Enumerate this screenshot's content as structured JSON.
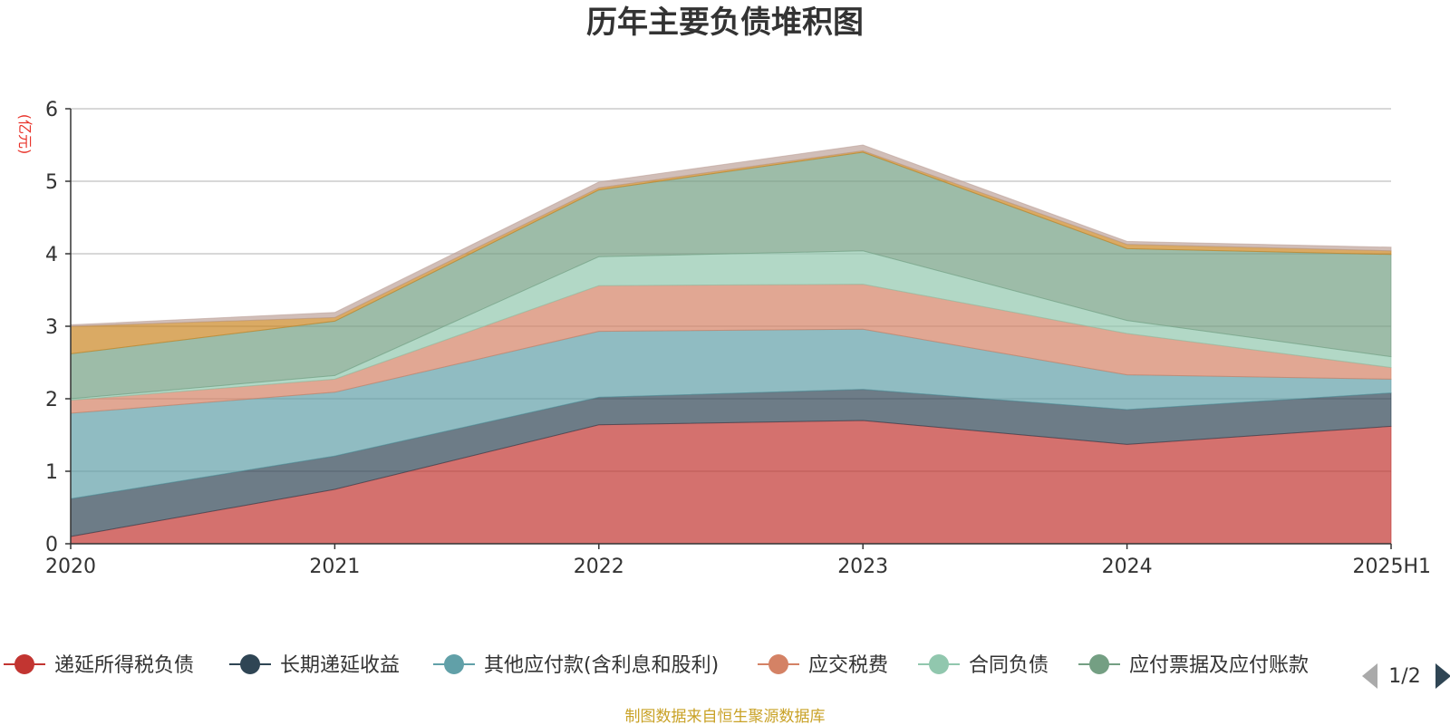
{
  "chart_data": {
    "type": "area",
    "stacked": true,
    "title": "历年主要负债堆积图",
    "unit": "(亿元)",
    "source": "制图数据来自恒生聚源数据库",
    "categories": [
      "2020",
      "2021",
      "2022",
      "2023",
      "2024",
      "2025H1"
    ],
    "ylim": [
      0,
      6
    ],
    "yticks": [
      "0",
      "1",
      "2",
      "3",
      "4",
      "5",
      "6"
    ],
    "grid": true,
    "legend_position": "bottom",
    "legend_page": "1/2",
    "series": [
      {
        "name": "递延所得税负债",
        "color": "#c23531",
        "values": [
          0.1,
          0.75,
          1.64,
          1.7,
          1.37,
          1.62
        ],
        "legend": true
      },
      {
        "name": "长期递延收益",
        "color": "#2f4554",
        "values": [
          0.52,
          0.46,
          0.38,
          0.43,
          0.48,
          0.46
        ],
        "legend": true
      },
      {
        "name": "其他应付款(含利息和股利)",
        "color": "#61a0a8",
        "values": [
          1.18,
          0.88,
          0.91,
          0.83,
          0.48,
          0.19
        ],
        "legend": true
      },
      {
        "name": "应交税费",
        "color": "#d48265",
        "values": [
          0.18,
          0.18,
          0.63,
          0.62,
          0.57,
          0.16
        ],
        "legend": true
      },
      {
        "name": "合同负债",
        "color": "#91c7ae",
        "values": [
          0.02,
          0.05,
          0.4,
          0.46,
          0.18,
          0.15
        ],
        "legend": true
      },
      {
        "name": "应付票据及应付账款",
        "color": "#749f83",
        "values": [
          0.62,
          0.75,
          0.92,
          1.36,
          0.99,
          1.41
        ],
        "legend": true
      },
      {
        "name": "",
        "color": "#ca8622",
        "values": [
          0.38,
          0.05,
          0.03,
          0.02,
          0.06,
          0.05
        ],
        "legend": false
      },
      {
        "name": "",
        "color": "#bda29a",
        "values": [
          0.02,
          0.07,
          0.08,
          0.08,
          0.04,
          0.05
        ],
        "legend": false
      }
    ]
  },
  "icons": {
    "prev": "triangle-left-icon",
    "next": "triangle-right-icon"
  }
}
